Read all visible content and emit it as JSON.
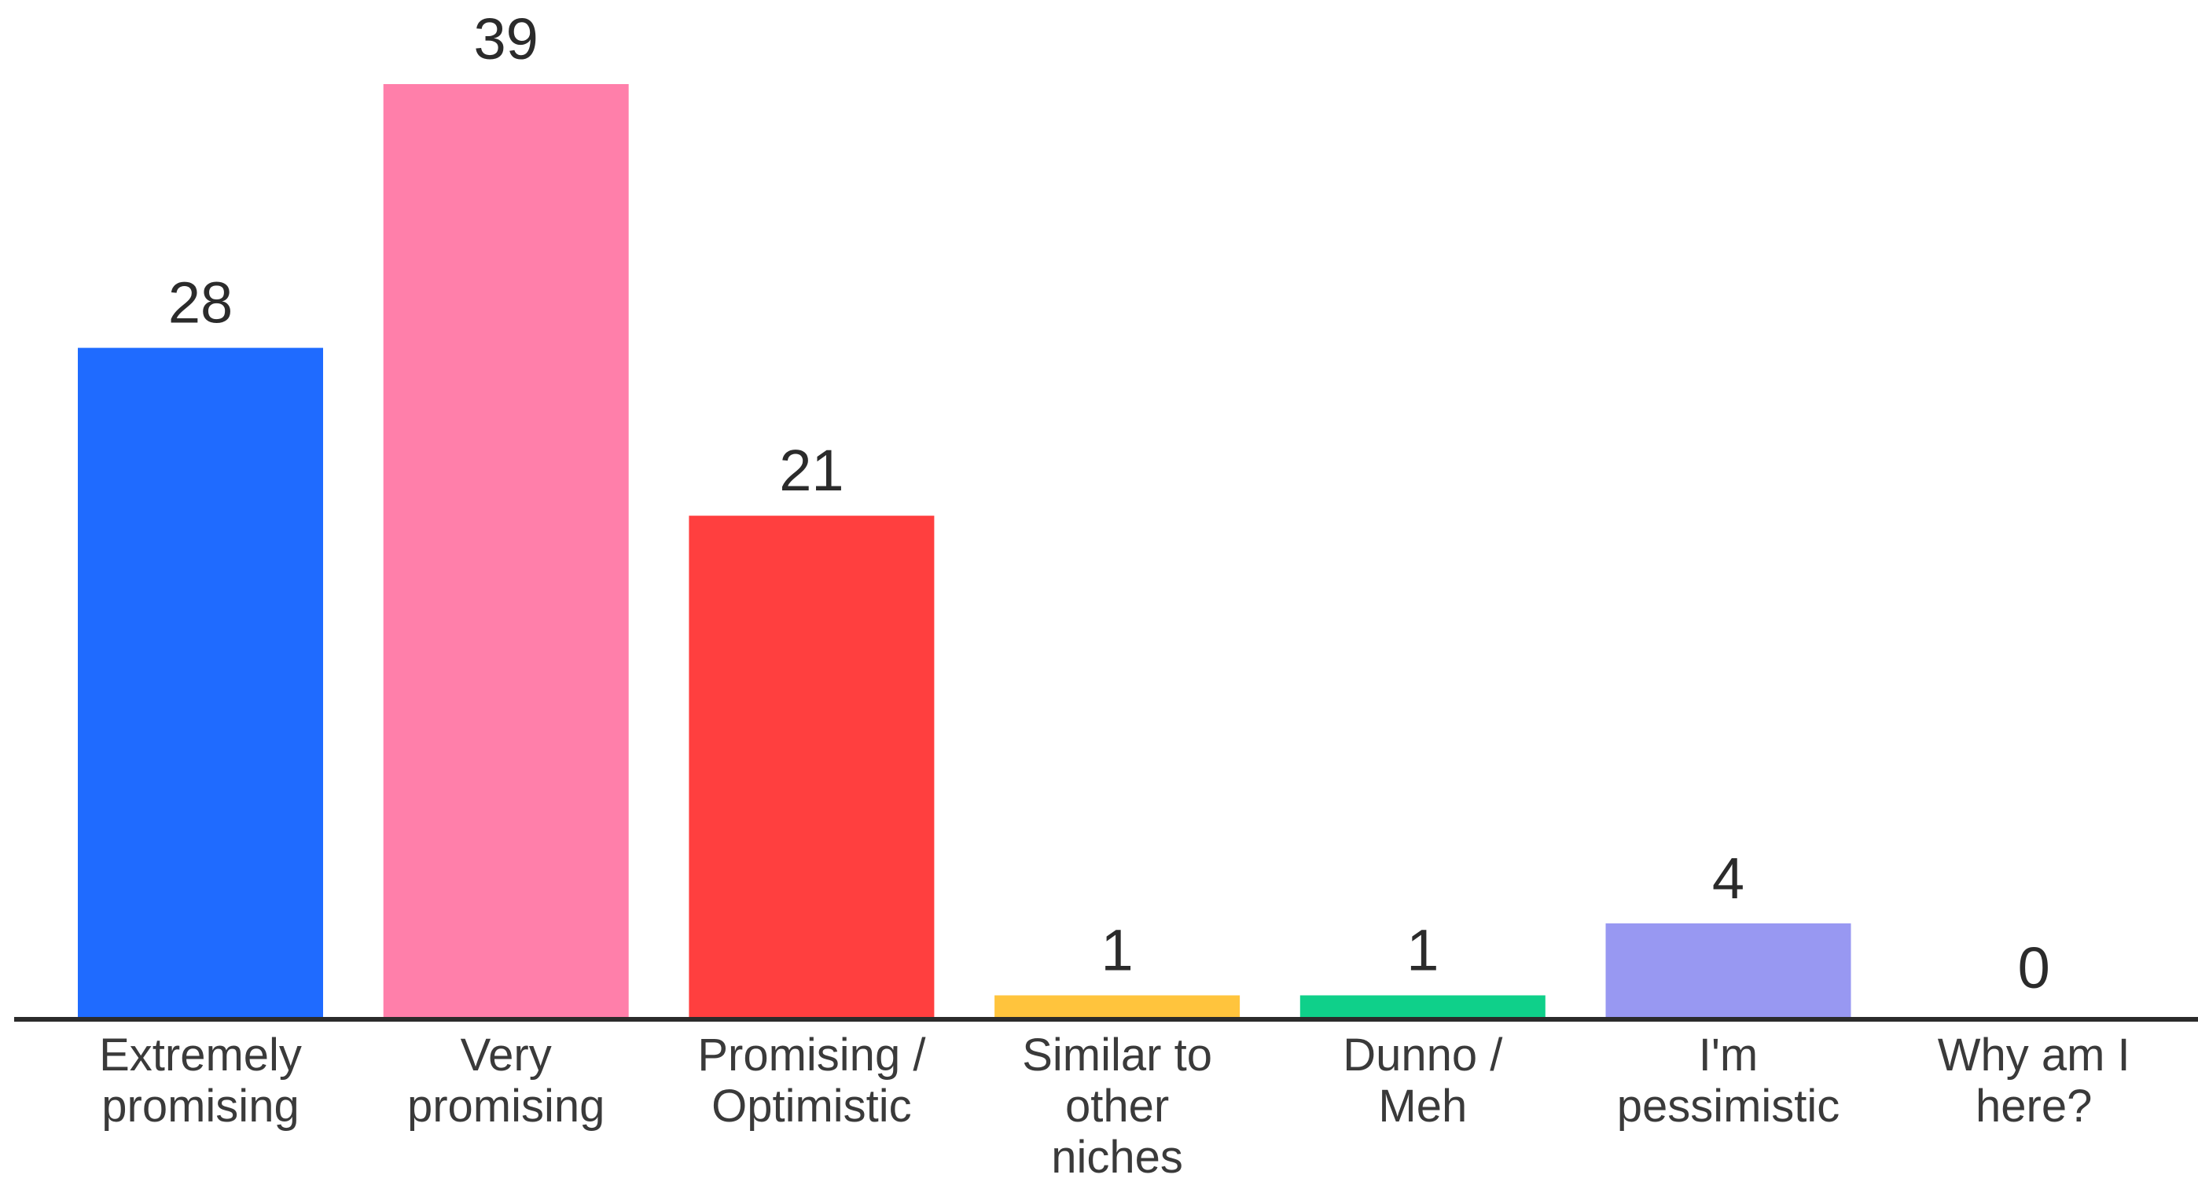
{
  "chart_data": {
    "type": "bar",
    "categories": [
      [
        "Extremely",
        "promising"
      ],
      [
        "Very",
        "promising"
      ],
      [
        "Promising /",
        "Optimistic"
      ],
      [
        "Similar to",
        "other",
        "niches"
      ],
      [
        "Dunno /",
        "Meh"
      ],
      [
        "I'm",
        "pessimistic"
      ],
      [
        "Why am I",
        "here?"
      ]
    ],
    "values": [
      28,
      39,
      21,
      1,
      1,
      4,
      0
    ],
    "colors": [
      "#1f6bff",
      "#ff7faa",
      "#ff3f3f",
      "#ffc43d",
      "#0fd08a",
      "#9898f2",
      "#cccccc"
    ],
    "axis_color": "#2b2b2b",
    "ylim": [
      0,
      39
    ],
    "grid": false,
    "legend": "none"
  }
}
